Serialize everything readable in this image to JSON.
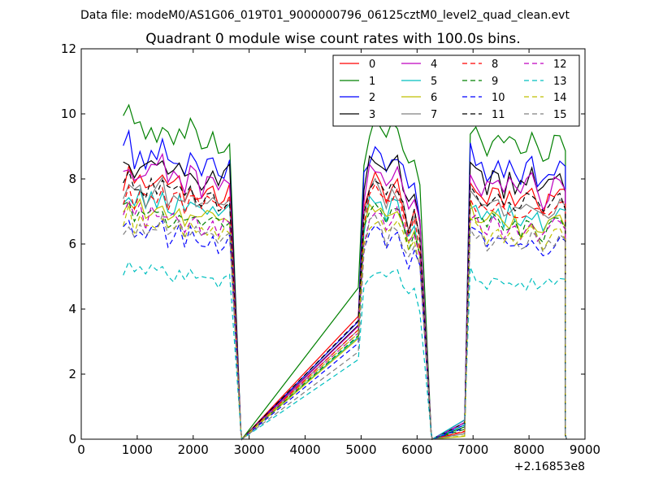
{
  "header": {
    "file_label": "Data file: modeM0/AS1G06_019T01_9000000796_06125cztM0_level2_quad_clean.evt"
  },
  "chart_data": {
    "type": "line",
    "title": "Quadrant 0 module wise count rates with 100.0s bins.",
    "xlabel": "",
    "ylabel": "",
    "x_offset_label": "+2.16853e8",
    "xlim": [
      0,
      9000
    ],
    "ylim": [
      0,
      12
    ],
    "x_ticks": [
      0,
      1000,
      2000,
      3000,
      4000,
      5000,
      6000,
      7000,
      8000,
      9000
    ],
    "x_tick_labels": [
      "0",
      "1000",
      "2000",
      "3000",
      "4000",
      "5000",
      "6000",
      "7000",
      "8000",
      "9000"
    ],
    "y_ticks": [
      0,
      2,
      4,
      6,
      8,
      10,
      12
    ],
    "y_tick_labels": [
      "0",
      "2",
      "4",
      "6",
      "8",
      "10",
      "12"
    ],
    "grid": false,
    "legend_location": "top-right",
    "legend_columns": 4,
    "segments": [
      {
        "x_start": 750,
        "x_end": 2650,
        "peak_x": 850,
        "drop_end": 2850,
        "shape": [
          1.0,
          1.04,
          0.98,
          1.02,
          0.97,
          1.01,
          0.99,
          1.03,
          0.96,
          0.98,
          1.0,
          0.95,
          0.99,
          0.97,
          0.94,
          0.96,
          0.98,
          0.93,
          0.95,
          0.97
        ]
      },
      {
        "x_start": 4950,
        "x_end": 6050,
        "peak_x": 5250,
        "drop_end": 6250,
        "shape": [
          0.45,
          0.9,
          1.0,
          1.02,
          0.97,
          0.95,
          0.99,
          1.0,
          0.93,
          0.85,
          0.9,
          0.8
        ]
      },
      {
        "x_start": 6850,
        "x_end": 8650,
        "peak_x": 6950,
        "drop_end": 8650,
        "shape": [
          0.05,
          1.0,
          0.97,
          0.95,
          0.93,
          0.96,
          0.94,
          0.92,
          0.95,
          0.93,
          0.91,
          0.94,
          0.96,
          0.92,
          0.9,
          0.93,
          0.95,
          0.97,
          0.94
        ]
      }
    ],
    "gaps": [
      [
        2850,
        4950
      ],
      [
        6250,
        6850
      ]
    ],
    "series": [
      {
        "name": "0",
        "color": "#ff0000",
        "style": "solid",
        "level": 7.9
      },
      {
        "name": "1",
        "color": "#008000",
        "style": "solid",
        "level": 9.6
      },
      {
        "name": "2",
        "color": "#0000ff",
        "style": "solid",
        "level": 8.8
      },
      {
        "name": "3",
        "color": "#000000",
        "style": "solid",
        "level": 8.4
      },
      {
        "name": "4",
        "color": "#bf00bf",
        "style": "solid",
        "level": 8.2
      },
      {
        "name": "5",
        "color": "#00bfbf",
        "style": "solid",
        "level": 7.3
      },
      {
        "name": "6",
        "color": "#bfbf00",
        "style": "solid",
        "level": 7.1
      },
      {
        "name": "7",
        "color": "#808080",
        "style": "solid",
        "level": 7.6
      },
      {
        "name": "8",
        "color": "#ff0000",
        "style": "dashed",
        "level": 7.5
      },
      {
        "name": "9",
        "color": "#008000",
        "style": "dashed",
        "level": 7.0
      },
      {
        "name": "10",
        "color": "#0000ff",
        "style": "dashed",
        "level": 6.4
      },
      {
        "name": "11",
        "color": "#000000",
        "style": "dashed",
        "level": 7.8
      },
      {
        "name": "12",
        "color": "#bf00bf",
        "style": "dashed",
        "level": 6.9
      },
      {
        "name": "13",
        "color": "#00bfbf",
        "style": "dashed",
        "level": 5.1
      },
      {
        "name": "14",
        "color": "#bfbf00",
        "style": "dashed",
        "level": 6.7
      },
      {
        "name": "15",
        "color": "#808080",
        "style": "dashed",
        "level": 6.5
      }
    ]
  }
}
